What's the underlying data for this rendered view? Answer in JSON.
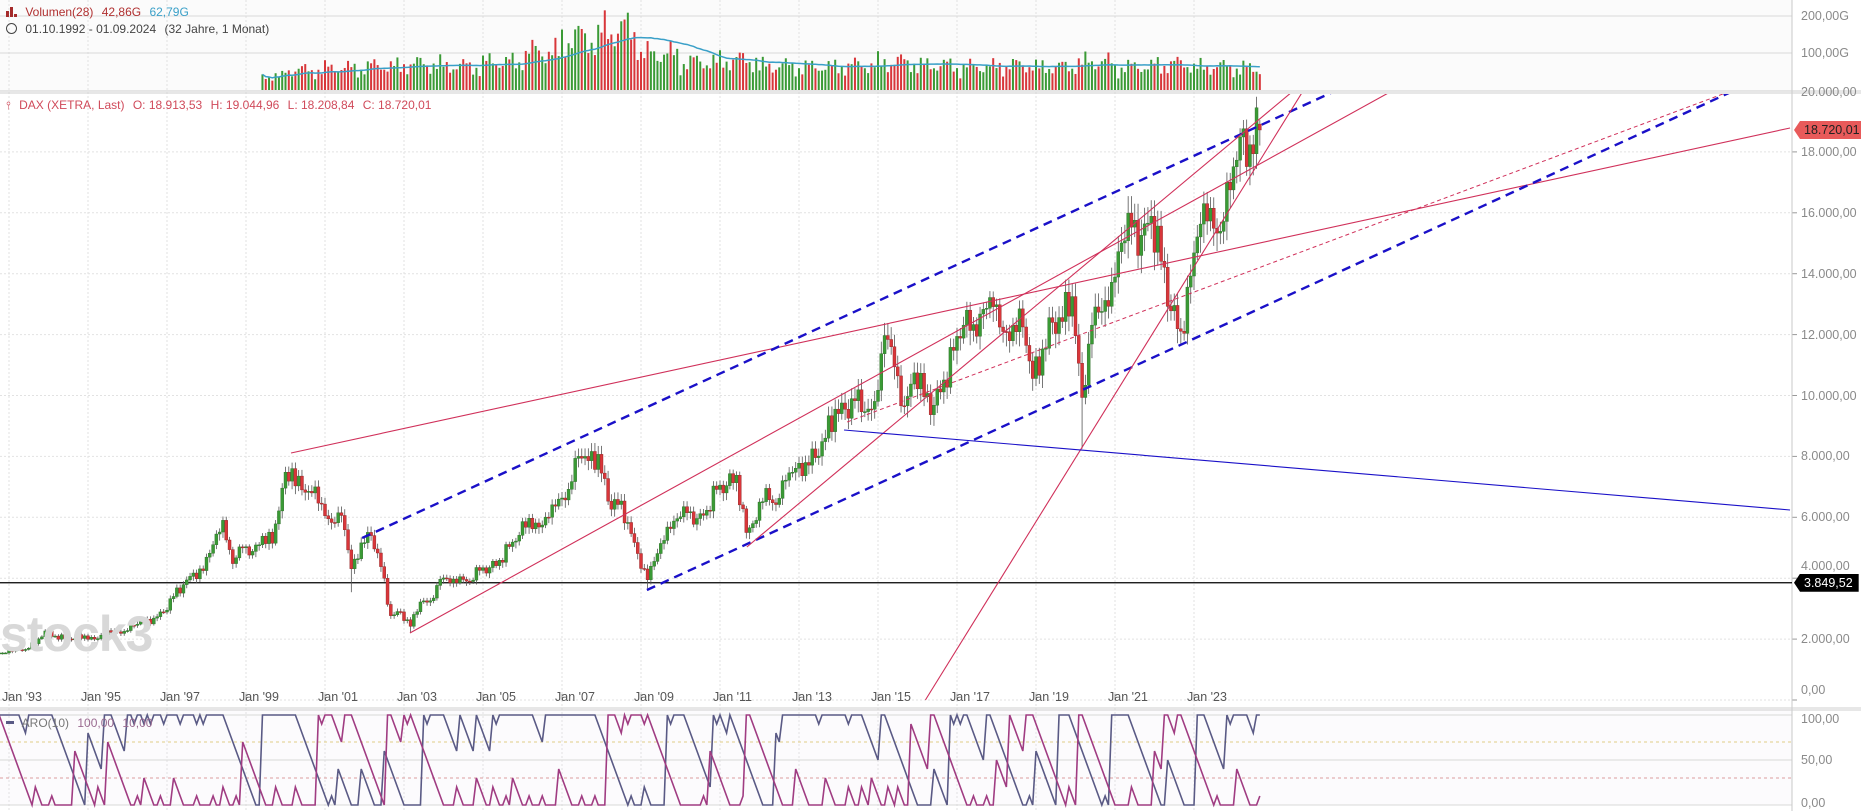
{
  "volume_legend": {
    "label": "Volumen(28)",
    "value": "42,86G",
    "ma_value": "62,79G",
    "icon": "bar-chart-icon"
  },
  "range_legend": {
    "range": "01.10.1992 - 01.09.2024",
    "duration": "(32 Jahre, 1 Monat)",
    "icon": "clock-icon"
  },
  "price_legend": {
    "label": "DAX (XETRA, Last)",
    "open": "O: 18.913,53",
    "high": "H: 19.044,96",
    "low": "L: 18.208,84",
    "close": "C: 18.720,01",
    "icon": "candlestick-icon"
  },
  "aro_legend": {
    "label": "ARO(10)",
    "up": "100,00",
    "down": "10,00"
  },
  "watermark": "stock3",
  "colors": {
    "up": "#3a9a35",
    "down": "#d8363a",
    "trend_red": "#d0305a",
    "trend_blue": "#1a10c8",
    "volume_ma": "#3aa0c8",
    "aroon_up": "#5a5a85",
    "aroon_down": "#a03c82",
    "last_price": "#e85a5a",
    "hline": "#000000"
  },
  "chart_data": [
    {
      "type": "candlestick",
      "title": "DAX (XETRA, Last)",
      "interval": "monthly",
      "x_range": [
        "1992-10",
        "2024-09"
      ],
      "quarter_end_closes_from_1992Q4": [
        1545,
        1690,
        1660,
        1850,
        2267,
        2100,
        2020,
        2010,
        2107,
        2000,
        2150,
        2270,
        2254,
        2450,
        2550,
        2690,
        2889,
        3400,
        3790,
        4170,
        4250,
        5100,
        5900,
        4480,
        5002,
        4880,
        5380,
        5150,
        6958,
        7600,
        6900,
        6800,
        6434,
        5830,
        6060,
        4310,
        5160,
        5400,
        4380,
        2770,
        2893,
        2420,
        3220,
        3260,
        3965,
        3850,
        4050,
        3890,
        4256,
        4350,
        4590,
        5040,
        5408,
        5970,
        5680,
        6000,
        6597,
        6920,
        8000,
        7860,
        8067,
        6530,
        6420,
        5830,
        4810,
        3950,
        4810,
        5680,
        5957,
        6150,
        5960,
        6230,
        6914,
        7040,
        7380,
        5500,
        5898,
        6950,
        6420,
        7220,
        7612,
        7800,
        7960,
        8600,
        9552,
        9550,
        9830,
        9470,
        9806,
        11970,
        10940,
        9660,
        10743,
        9960,
        9680,
        10510,
        11481,
        12310,
        12330,
        12830,
        12918,
        12100,
        12310,
        12250,
        10559,
        11530,
        12400,
        12430,
        13249,
        9935,
        12310,
        12760,
        13719,
        15010,
        15530,
        15260,
        15885,
        14410,
        12780,
        12110,
        13924,
        15630,
        16150,
        15390,
        16752,
        18490,
        18235,
        18720
      ],
      "notable_lows": {
        "2001-09": 3540,
        "2003-03": 2200,
        "2009-03": 3666,
        "2020-03": 8256
      },
      "last": {
        "open": 18913.53,
        "high": 19044.96,
        "low": 18208.84,
        "close": 18720.01
      },
      "ylim": [
        0,
        20000
      ],
      "y_ticks": [
        "20.000,00",
        "18.000,00",
        "16.000,00",
        "14.000,00",
        "12.000,00",
        "10.000,00",
        "8.000,00",
        "6.000,00",
        "4.000,00",
        "2.000,00",
        "0,00"
      ],
      "y_tick_values": [
        20000,
        18000,
        16000,
        14000,
        12000,
        10000,
        8000,
        6000,
        4000,
        2000,
        0
      ],
      "x_ticks": [
        "Jan '93",
        "Jan '95",
        "Jan '97",
        "Jan '99",
        "Jan '01",
        "Jan '03",
        "Jan '05",
        "Jan '07",
        "Jan '09",
        "Jan '11",
        "Jan '13",
        "Jan '15",
        "Jan '17",
        "Jan '19",
        "Jan '21",
        "Jan '23"
      ],
      "x_tick_years": [
        1993,
        1995,
        1997,
        1999,
        2001,
        2003,
        2005,
        2007,
        2009,
        2011,
        2013,
        2015,
        2017,
        2019,
        2021,
        2023
      ],
      "grid": true,
      "price_tags": [
        {
          "label": "18.720,01",
          "value": 18720.01,
          "color": "#e85a5a"
        },
        {
          "label": "3.849,52",
          "value": 3849.52,
          "color": "#000000"
        }
      ],
      "horizontal_line": 3849.52,
      "trendlines": [
        {
          "style": "solid",
          "color": "red",
          "from": [
            2000.14,
            8112
          ],
          "to": [
            2038.09,
            18785
          ]
        },
        {
          "style": "dashed",
          "color": "blue",
          "from": [
            2001.94,
            5320
          ],
          "to": [
            2026.57,
            20000
          ]
        },
        {
          "style": "dashed",
          "color": "blue",
          "from": [
            2009.15,
            3613
          ],
          "to": [
            2036.65,
            20000
          ]
        },
        {
          "style": "solid",
          "color": "red",
          "from": [
            2003.15,
            2200
          ],
          "to": [
            2028.01,
            20000
          ]
        },
        {
          "style": "solid",
          "color": "red",
          "from": [
            2011.68,
            5025
          ],
          "to": [
            2025.51,
            20000
          ]
        },
        {
          "style": "solid",
          "color": "red",
          "from": [
            2016.2,
            0
          ],
          "to": [
            2025.76,
            20000
          ]
        },
        {
          "style": "dotted",
          "color": "red",
          "from": [
            2014.22,
            9130
          ],
          "to": [
            2036.59,
            20000
          ]
        },
        {
          "style": "solid",
          "color": "blue",
          "from": [
            2014.14,
            8867
          ],
          "to": [
            2038.09,
            6240
          ]
        }
      ]
    },
    {
      "type": "bar",
      "title": "Volumen(28)",
      "yearly_avg_volume_G": {
        "1999": 35,
        "2000": 50,
        "2001": 55,
        "2002": 60,
        "2003": 65,
        "2004": 60,
        "2005": 70,
        "2006": 95,
        "2007": 130,
        "2008": 150,
        "2009": 90,
        "2010": 70,
        "2011": 75,
        "2012": 60,
        "2013": 58,
        "2014": 62,
        "2015": 70,
        "2016": 62,
        "2017": 58,
        "2018": 62,
        "2019": 58,
        "2020": 70,
        "2021": 58,
        "2022": 65,
        "2023": 58,
        "2024": 55
      },
      "start": "1999-06",
      "last_value_G": 42.86,
      "ma_last_G": 62.79,
      "y_ticks": [
        "200,00G",
        "100,00G"
      ],
      "y_tick_values": [
        200,
        100
      ]
    },
    {
      "type": "line",
      "title": "ARO(10)",
      "period": 10,
      "series": [
        {
          "name": "up",
          "last": 100
        },
        {
          "name": "down",
          "last": 10
        }
      ],
      "ylim": [
        0,
        100
      ],
      "y_ticks": [
        "100,00",
        "50,00",
        "0,00"
      ],
      "y_tick_values": [
        100,
        50,
        0
      ]
    }
  ]
}
